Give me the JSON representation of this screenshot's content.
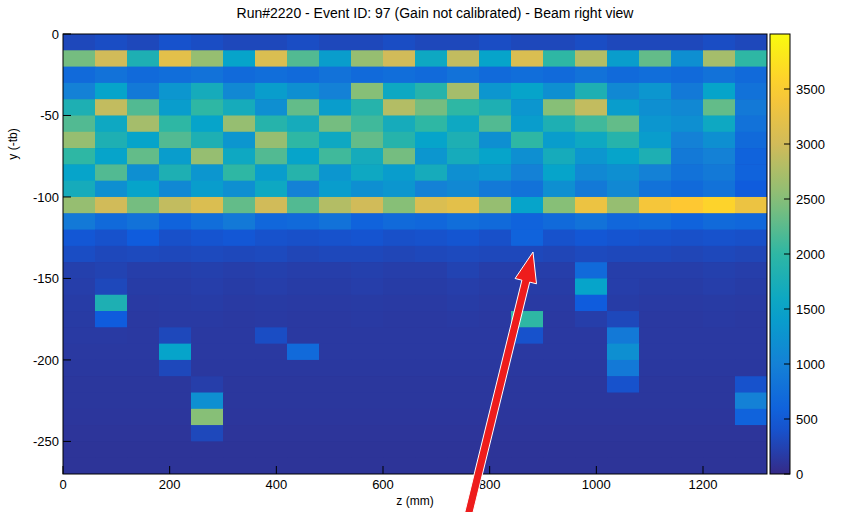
{
  "chart_data": {
    "type": "heatmap",
    "title": "Run#2220 - Event ID: 97 (Gain not calibrated) - Beam right view",
    "x_label": "z (mm)",
    "y_label": "y (-tb)",
    "xlim": [
      0,
      1320
    ],
    "xticks": [
      0,
      200,
      400,
      600,
      800,
      1000,
      1200
    ],
    "ylim": [
      -270,
      0
    ],
    "yticks": [
      0,
      -50,
      -100,
      -150,
      -200,
      -250
    ],
    "grid": false,
    "x_bins": [
      0,
      60,
      120,
      180,
      240,
      300,
      360,
      420,
      480,
      540,
      600,
      660,
      720,
      780,
      840,
      900,
      960,
      1020,
      1080,
      1140,
      1200,
      1260,
      1320
    ],
    "y_bins": [
      0,
      -10,
      -20,
      -30,
      -40,
      -50,
      -60,
      -70,
      -80,
      -90,
      -100,
      -110,
      -120,
      -130,
      -140,
      -150,
      -160,
      -170,
      -180,
      -190,
      -200,
      -210,
      -220,
      -230,
      -240,
      -250,
      -260,
      -270
    ],
    "cells": [
      [
        300,
        350,
        300,
        400,
        350,
        300,
        300,
        350,
        300,
        300,
        350,
        300,
        300,
        350,
        300,
        300,
        350,
        300,
        300,
        300,
        350,
        300
      ],
      [
        2400,
        3000,
        1800,
        3200,
        2600,
        1500,
        3100,
        2200,
        1400,
        2600,
        3000,
        1600,
        2900,
        1500,
        3100,
        2000,
        2800,
        1400,
        2300,
        1200,
        2700,
        2000
      ],
      [
        700,
        800,
        700,
        750,
        800,
        700,
        750,
        700,
        800,
        700,
        750,
        700,
        800,
        700,
        750,
        700,
        800,
        700,
        750,
        700,
        800,
        700
      ],
      [
        1000,
        1500,
        900,
        1300,
        1700,
        1100,
        1400,
        1200,
        1000,
        2500,
        1600,
        1900,
        2700,
        1300,
        1500,
        1200,
        1800,
        1100,
        1300,
        900,
        1500,
        800
      ],
      [
        1800,
        2900,
        2200,
        1400,
        2000,
        1700,
        1200,
        2300,
        1400,
        1900,
        2800,
        2400,
        2000,
        1800,
        1300,
        2500,
        2900,
        1400,
        1200,
        1100,
        2300,
        900
      ],
      [
        2200,
        1600,
        2700,
        2000,
        1500,
        2600,
        1900,
        1700,
        2400,
        2100,
        1700,
        2000,
        1600,
        2200,
        1400,
        1800,
        2100,
        2300,
        1300,
        1200,
        1600,
        800
      ],
      [
        2600,
        1800,
        1500,
        2200,
        1800,
        1300,
        2600,
        2000,
        1600,
        2300,
        1900,
        1500,
        1800,
        1200,
        2000,
        1400,
        1600,
        1900,
        1400,
        1000,
        1200,
        700
      ],
      [
        2000,
        1500,
        2300,
        1400,
        2600,
        1600,
        2200,
        1500,
        2100,
        1700,
        2400,
        1300,
        1700,
        1500,
        1200,
        1700,
        1300,
        1500,
        1800,
        900,
        1000,
        600
      ],
      [
        1500,
        2200,
        1200,
        1800,
        1300,
        2000,
        1400,
        1900,
        1300,
        1600,
        1400,
        1700,
        1200,
        1300,
        1000,
        1500,
        1100,
        1200,
        1000,
        800,
        900,
        600
      ],
      [
        1700,
        1200,
        1500,
        1100,
        1400,
        1200,
        1600,
        1000,
        1400,
        1200,
        1300,
        1000,
        1100,
        900,
        800,
        1200,
        900,
        1100,
        800,
        700,
        800,
        500
      ],
      [
        2600,
        3000,
        2400,
        2900,
        3100,
        2300,
        3000,
        2200,
        2800,
        3000,
        2500,
        3100,
        3200,
        2600,
        1500,
        2500,
        3300,
        2600,
        3400,
        3500,
        3600,
        3300
      ],
      [
        900,
        700,
        800,
        600,
        750,
        900,
        650,
        700,
        800,
        600,
        700,
        650,
        750,
        700,
        600,
        700,
        800,
        650,
        700,
        600,
        700,
        650
      ],
      [
        450,
        400,
        500,
        380,
        420,
        450,
        400,
        380,
        400,
        420,
        380,
        400,
        430,
        380,
        600,
        400,
        450,
        420,
        400,
        380,
        400,
        380
      ],
      [
        350,
        300,
        320,
        300,
        320,
        300,
        320,
        280,
        300,
        300,
        280,
        300,
        320,
        300,
        300,
        280,
        320,
        300,
        300,
        280,
        300,
        280
      ],
      [
        220,
        250,
        200,
        200,
        220,
        200,
        220,
        200,
        200,
        220,
        200,
        200,
        250,
        200,
        200,
        200,
        700,
        200,
        200,
        200,
        220,
        200
      ],
      [
        200,
        300,
        180,
        180,
        200,
        180,
        200,
        180,
        180,
        200,
        180,
        180,
        200,
        180,
        180,
        180,
        1500,
        200,
        180,
        180,
        200,
        180
      ],
      [
        180,
        1800,
        160,
        170,
        180,
        160,
        170,
        160,
        160,
        170,
        160,
        160,
        180,
        160,
        160,
        160,
        500,
        180,
        160,
        160,
        170,
        160
      ],
      [
        170,
        500,
        150,
        160,
        160,
        150,
        160,
        150,
        150,
        160,
        150,
        150,
        160,
        150,
        2000,
        150,
        200,
        300,
        150,
        150,
        160,
        150
      ],
      [
        160,
        160,
        150,
        300,
        150,
        150,
        350,
        150,
        150,
        150,
        150,
        150,
        150,
        150,
        400,
        150,
        150,
        900,
        150,
        150,
        150,
        150
      ],
      [
        150,
        150,
        150,
        1500,
        150,
        150,
        150,
        700,
        150,
        150,
        150,
        150,
        150,
        150,
        150,
        150,
        150,
        1200,
        150,
        150,
        150,
        150
      ],
      [
        140,
        140,
        140,
        300,
        140,
        140,
        140,
        140,
        140,
        140,
        140,
        140,
        140,
        140,
        140,
        140,
        140,
        900,
        140,
        140,
        140,
        140
      ],
      [
        130,
        130,
        130,
        130,
        200,
        130,
        130,
        130,
        130,
        130,
        130,
        130,
        130,
        130,
        130,
        130,
        130,
        400,
        130,
        130,
        130,
        400
      ],
      [
        130,
        130,
        130,
        130,
        1200,
        130,
        130,
        130,
        130,
        130,
        130,
        130,
        130,
        130,
        130,
        130,
        130,
        130,
        130,
        130,
        130,
        1000
      ],
      [
        120,
        120,
        120,
        120,
        2500,
        120,
        120,
        120,
        120,
        120,
        120,
        120,
        120,
        120,
        120,
        120,
        120,
        120,
        120,
        120,
        120,
        600
      ],
      [
        110,
        110,
        110,
        110,
        300,
        110,
        110,
        110,
        110,
        110,
        110,
        110,
        110,
        110,
        110,
        110,
        110,
        110,
        110,
        110,
        110,
        110
      ],
      [
        100,
        100,
        100,
        100,
        100,
        100,
        100,
        100,
        100,
        100,
        100,
        100,
        100,
        100,
        100,
        100,
        100,
        100,
        100,
        100,
        100,
        100
      ],
      [
        100,
        100,
        100,
        100,
        100,
        100,
        100,
        100,
        100,
        100,
        100,
        100,
        100,
        100,
        100,
        100,
        100,
        100,
        100,
        100,
        100,
        100
      ]
    ],
    "colorbar": {
      "range": [
        0,
        4000
      ],
      "ticks": [
        0,
        500,
        1000,
        1500,
        2000,
        2500,
        3000,
        3500
      ]
    }
  }
}
